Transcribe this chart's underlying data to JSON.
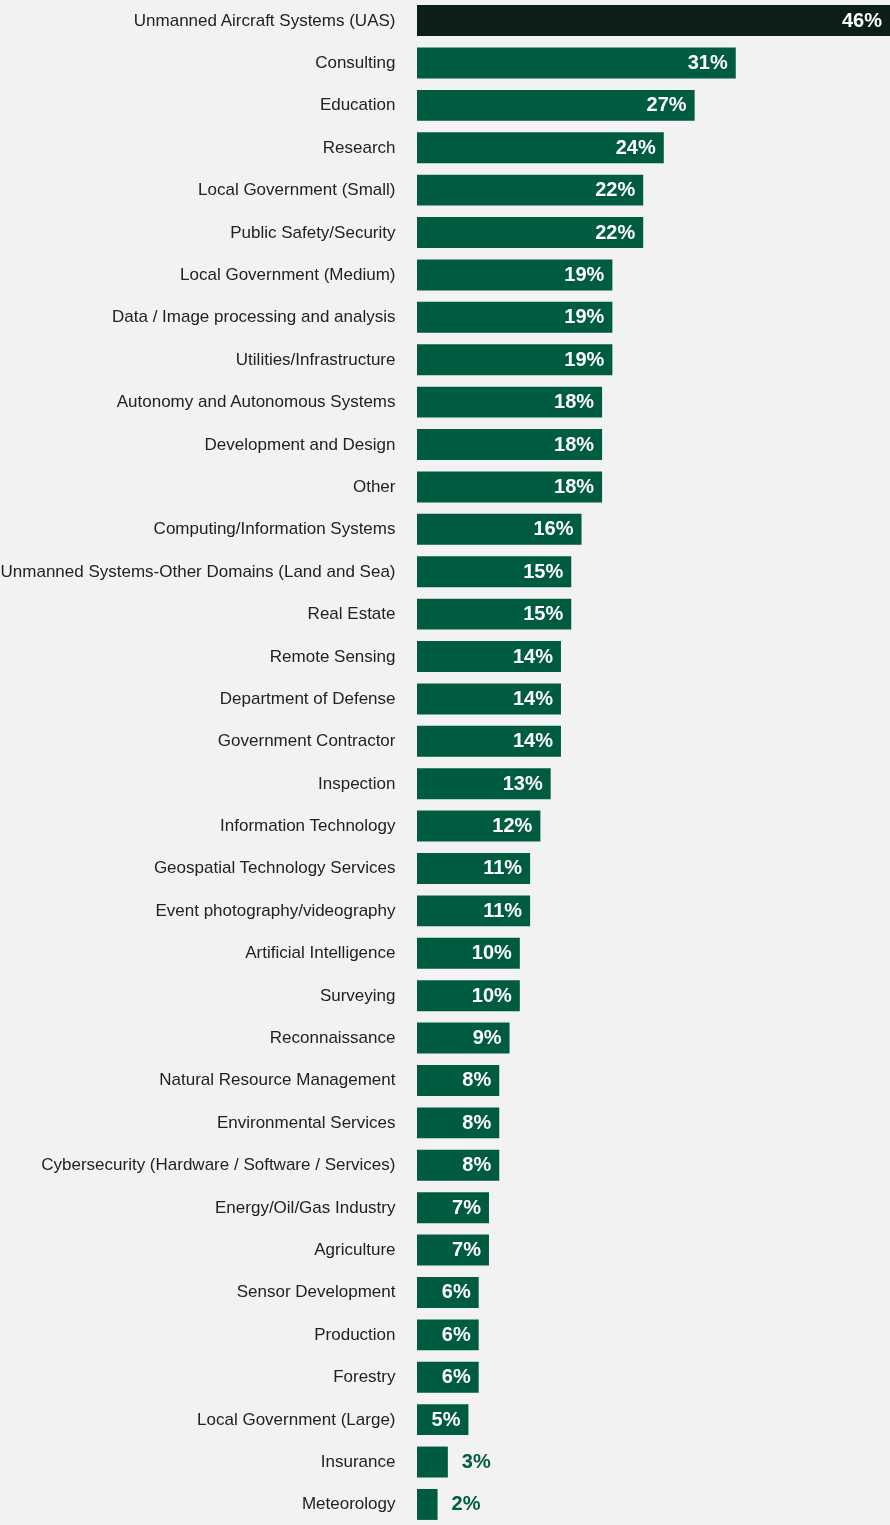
{
  "chart_data": {
    "type": "bar",
    "orientation": "horizontal",
    "value_labels": [
      "46%",
      "31%",
      "27%",
      "24%",
      "22%",
      "22%",
      "19%",
      "19%",
      "19%",
      "18%",
      "18%",
      "18%",
      "16%",
      "15%",
      "15%",
      "14%",
      "14%",
      "14%",
      "13%",
      "12%",
      "11%",
      "11%",
      "10%",
      "10%",
      "9%",
      "8%",
      "8%",
      "8%",
      "7%",
      "7%",
      "6%",
      "6%",
      "6%",
      "5%",
      "3%",
      "2%"
    ],
    "categories": [
      "Unmanned Aircraft Systems (UAS)",
      "Consulting",
      "Education",
      "Research",
      "Local Government (Small)",
      "Public Safety/Security",
      "Local Government (Medium)",
      "Data / Image processing and analysis",
      "Utilities/Infrastructure",
      "Autonomy and Autonomous Systems",
      "Development and Design",
      "Other",
      "Computing/Information Systems",
      "Unmanned Systems-Other Domains (Land and Sea)",
      "Real Estate",
      "Remote Sensing",
      "Department of Defense",
      "Government Contractor",
      "Inspection",
      "Information Technology",
      "Geospatial Technology Services",
      "Event photography/videography",
      "Artificial Intelligence",
      "Surveying",
      "Reconnaissance",
      "Natural Resource Management",
      "Environmental Services",
      "Cybersecurity (Hardware / Software / Services)",
      "Energy/Oil/Gas Industry",
      "Agriculture",
      "Sensor Development",
      "Production",
      "Forestry",
      "Local Government (Large)",
      "Insurance",
      "Meteorology"
    ],
    "values": [
      46,
      31,
      27,
      24,
      22,
      22,
      19,
      19,
      19,
      18,
      18,
      18,
      16,
      15,
      15,
      14,
      14,
      14,
      13,
      12,
      11,
      11,
      10,
      10,
      9,
      8,
      8,
      8,
      7,
      7,
      6,
      6,
      6,
      5,
      3,
      2
    ],
    "colors": [
      "#0b1f17",
      "#005c40",
      "#005c40",
      "#005c40",
      "#005c40",
      "#005c40",
      "#005c40",
      "#005c40",
      "#005c40",
      "#005c40",
      "#005c40",
      "#005c40",
      "#005c40",
      "#005c40",
      "#005c40",
      "#005c40",
      "#005c40",
      "#005c40",
      "#005c40",
      "#005c40",
      "#005c40",
      "#005c40",
      "#005c40",
      "#005c40",
      "#005c40",
      "#005c40",
      "#005c40",
      "#005c40",
      "#005c40",
      "#005c40",
      "#005c40",
      "#005c40",
      "#005c40",
      "#005c40",
      "#005c40",
      "#005c40"
    ]
  }
}
